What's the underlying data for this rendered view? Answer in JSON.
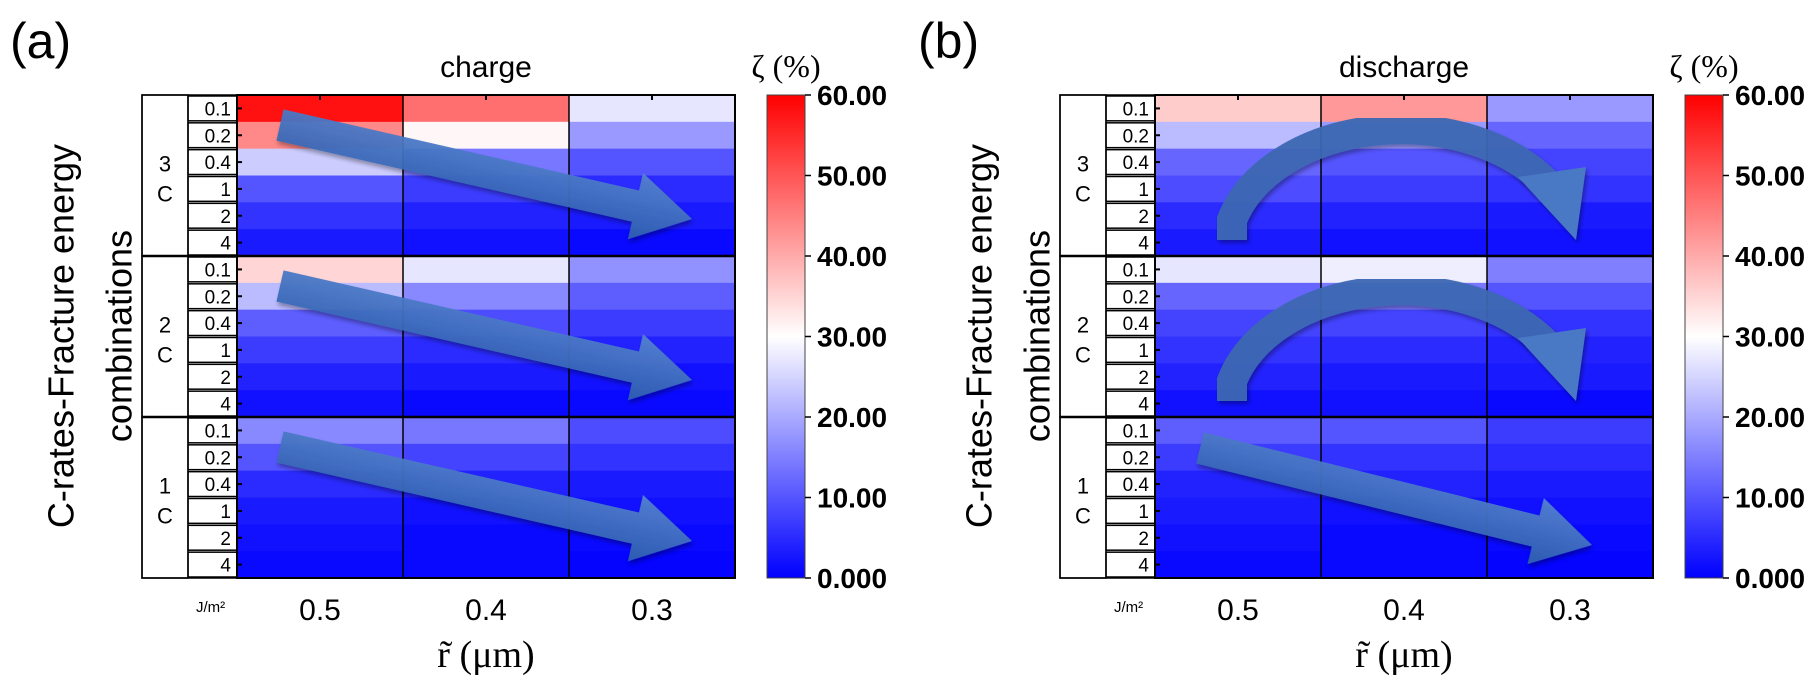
{
  "chart_data": [
    {
      "type": "heatmap",
      "panel_label": "(a)",
      "title": "charge",
      "xlabel": "r̃ (μm)",
      "ylabel_line1": "C-rates-Fracture energy",
      "ylabel_line2": "combinations",
      "fe_unit": "J/m²",
      "x_categories": [
        "0.5",
        "0.4",
        "0.3"
      ],
      "c_rate_groups": [
        {
          "label_num": "3",
          "label_unit": "C",
          "fracture_energies": [
            "0.1",
            "0.2",
            "0.4",
            "1",
            "2",
            "4"
          ],
          "values": [
            [
              58,
              47,
              27
            ],
            [
              44,
              31,
              18
            ],
            [
              24,
              14,
              10
            ],
            [
              10,
              7,
              5
            ],
            [
              6,
              4,
              3
            ],
            [
              3,
              2,
              1
            ]
          ]
        },
        {
          "label_num": "2",
          "label_unit": "C",
          "fracture_energies": [
            "0.1",
            "0.2",
            "0.4",
            "1",
            "2",
            "4"
          ],
          "values": [
            [
              35,
              27,
              17
            ],
            [
              22,
              16,
              11
            ],
            [
              11,
              9,
              7
            ],
            [
              7,
              5,
              4
            ],
            [
              4,
              3,
              2
            ],
            [
              2,
              1,
              1
            ]
          ]
        },
        {
          "label_num": "1",
          "label_unit": "C",
          "fracture_energies": [
            "0.1",
            "0.2",
            "0.4",
            "1",
            "2",
            "4"
          ],
          "values": [
            [
              16,
              14,
              9
            ],
            [
              10,
              8,
              6
            ],
            [
              5,
              4,
              3
            ],
            [
              3,
              2,
              2
            ],
            [
              2,
              1,
              1
            ],
            [
              1,
              1,
              0.5
            ]
          ]
        }
      ],
      "colorbar": {
        "title": "ζ (%)",
        "range": [
          0,
          60
        ],
        "ticks": [
          "60.00",
          "50.00",
          "40.00",
          "30.00",
          "20.00",
          "10.00",
          "0.000"
        ],
        "colors": {
          "low": "#0000ff",
          "mid": "#ffffff",
          "high": "#ff0000"
        }
      },
      "annotations": [
        "straight-arrow",
        "straight-arrow",
        "straight-arrow"
      ]
    },
    {
      "type": "heatmap",
      "panel_label": "(b)",
      "title": "discharge",
      "xlabel": "r̃ (μm)",
      "ylabel_line1": "C-rates-Fracture energy",
      "ylabel_line2": "combinations",
      "fe_unit": "J/m²",
      "x_categories": [
        "0.5",
        "0.4",
        "0.3"
      ],
      "c_rate_groups": [
        {
          "label_num": "3",
          "label_unit": "C",
          "fracture_energies": [
            "0.1",
            "0.2",
            "0.4",
            "1",
            "2",
            "4"
          ],
          "values": [
            [
              36,
              42,
              18
            ],
            [
              22,
              18,
              12
            ],
            [
              12,
              10,
              8
            ],
            [
              9,
              7,
              6
            ],
            [
              5,
              4,
              3
            ],
            [
              3,
              2,
              2
            ]
          ]
        },
        {
          "label_num": "2",
          "label_unit": "C",
          "fracture_energies": [
            "0.1",
            "0.2",
            "0.4",
            "1",
            "2",
            "4"
          ],
          "values": [
            [
              27,
              28,
              15
            ],
            [
              12,
              14,
              10
            ],
            [
              8,
              8,
              6
            ],
            [
              6,
              5,
              4
            ],
            [
              4,
              3,
              3
            ],
            [
              2,
              2,
              1
            ]
          ]
        },
        {
          "label_num": "1",
          "label_unit": "C",
          "fracture_energies": [
            "0.1",
            "0.2",
            "0.4",
            "1",
            "2",
            "4"
          ],
          "values": [
            [
              11,
              10,
              7
            ],
            [
              7,
              6,
              5
            ],
            [
              4,
              4,
              3
            ],
            [
              3,
              2,
              2
            ],
            [
              2,
              1,
              1
            ],
            [
              1,
              1,
              0.5
            ]
          ]
        }
      ],
      "colorbar": {
        "title": "ζ (%)",
        "range": [
          0,
          60
        ],
        "ticks": [
          "60.00",
          "50.00",
          "40.00",
          "30.00",
          "20.00",
          "10.00",
          "0.000"
        ],
        "colors": {
          "low": "#0000ff",
          "mid": "#ffffff",
          "high": "#ff0000"
        }
      },
      "annotations": [
        "arc-arrow",
        "arc-arrow",
        "straight-arrow"
      ]
    }
  ],
  "arrow_color": "#3f6fc2"
}
